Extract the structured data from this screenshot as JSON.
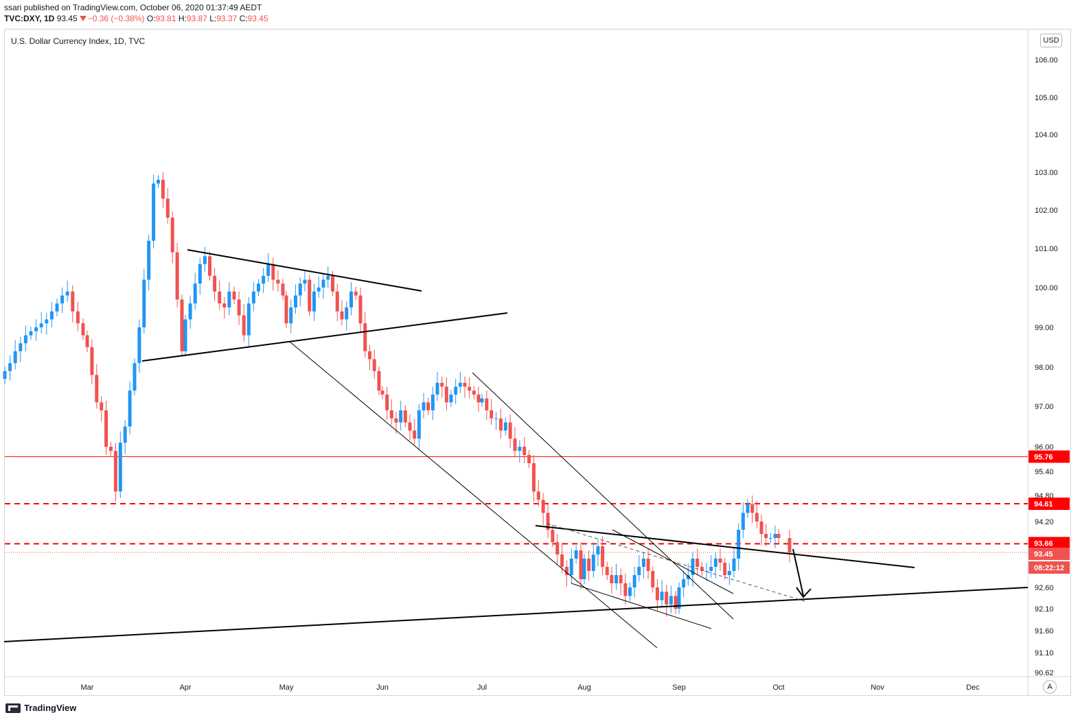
{
  "header": {
    "published": "ssari published on TradingView.com, October 06, 2020 01:37:49 AEDT",
    "symbol": "TVC:DXY, 1D",
    "last": "93.45",
    "change": "−0.36 (−0.38%)",
    "o_label": "O:",
    "o": "93.81",
    "h_label": "H:",
    "h": "93.87",
    "l_label": "L:",
    "l": "93.37",
    "c_label": "C:",
    "c": "93.45"
  },
  "chart_title": "U.S. Dollar Currency Index, 1D, TVC",
  "currency_badge": "USD",
  "scale_button": "A",
  "footer": {
    "brand": "TradingView"
  },
  "colors": {
    "up": "#2196f3",
    "down": "#ef5350",
    "level": "#ff0000",
    "trend": "#000000"
  },
  "chart_data": {
    "type": "candlestick",
    "title": "U.S. Dollar Currency Index, 1D, TVC",
    "y_axis": {
      "ticks": [
        "106.00",
        "105.00",
        "104.00",
        "103.00",
        "102.00",
        "101.00",
        "100.00",
        "99.00",
        "98.00",
        "97.00",
        "96.00",
        "95.40",
        "94.80",
        "94.20",
        "92.60",
        "92.10",
        "91.60",
        "91.10",
        "90.62"
      ],
      "min": 90.62,
      "max": 106.6
    },
    "x_axis": {
      "ticks": [
        "Mar",
        "Apr",
        "May",
        "Jun",
        "Jul",
        "Aug",
        "Sep",
        "Oct",
        "Nov",
        "Dec"
      ]
    },
    "price_labels": [
      {
        "value": "95.76",
        "style": "solid"
      },
      {
        "value": "94.61",
        "style": "dashed"
      },
      {
        "value": "93.66",
        "style": "dashed"
      },
      {
        "value": "93.45",
        "style": "last"
      },
      {
        "value": "08:22:12",
        "style": "countdown"
      }
    ],
    "horizontal_levels": [
      95.76,
      94.61,
      93.66
    ],
    "last_price": 93.45,
    "closes_by_month": {
      "Feb": [
        97.9,
        98.1,
        98.4,
        98.6,
        98.8,
        98.9,
        99.0,
        99.1,
        99.2,
        99.4,
        99.6,
        99.8,
        99.9,
        99.4,
        99.1,
        98.8
      ],
      "Mar": [
        98.5,
        97.8,
        97.1,
        96.9,
        96.0,
        95.9,
        94.9,
        96.1,
        96.5,
        97.4,
        98.1,
        99.0,
        100.2,
        101.2,
        102.7,
        102.8,
        102.3,
        101.8,
        100.9,
        99.7,
        98.4
      ],
      "Apr": [
        99.2,
        99.6,
        100.1,
        100.6,
        100.8,
        100.3,
        99.9,
        99.6,
        99.5,
        99.9,
        99.7,
        99.3,
        98.8,
        99.6,
        99.9,
        100.1,
        100.3,
        100.6,
        100.2,
        100.1,
        99.8
      ],
      "May": [
        99.1,
        99.5,
        99.8,
        100.1,
        100.2,
        99.4,
        99.9,
        100.0,
        100.2,
        100.3,
        99.9,
        99.4,
        99.2,
        99.5,
        99.9,
        99.8,
        99.1,
        98.4,
        98.2,
        97.9,
        97.4
      ],
      "Jun": [
        97.3,
        96.9,
        96.7,
        96.6,
        96.9,
        96.6,
        96.4,
        96.2,
        96.9,
        97.1,
        96.9,
        97.3,
        97.6,
        97.5,
        97.1,
        97.3,
        97.5,
        97.6,
        97.5,
        97.4,
        97.3,
        97.1
      ],
      "Jul": [
        97.2,
        96.9,
        96.7,
        96.7,
        96.4,
        96.6,
        96.2,
        95.9,
        96.0,
        95.8,
        95.6,
        94.9,
        94.7,
        94.4,
        94.0,
        93.7,
        93.4,
        93.1,
        92.9,
        93.3,
        93.5,
        92.8
      ],
      "Aug": [
        93.3,
        93.0,
        93.4,
        93.6,
        93.1,
        92.9,
        92.7,
        92.9,
        92.7,
        92.4,
        92.6,
        92.9,
        93.1,
        93.3,
        93.0,
        92.6,
        92.3,
        92.5,
        92.2,
        92.4,
        92.1
      ],
      "Sep": [
        92.6,
        92.8,
        92.9,
        93.3,
        93.1,
        93.0,
        93.0,
        93.1,
        93.3,
        93.2,
        92.9,
        93.0,
        93.3,
        94.0,
        94.4,
        94.6,
        94.4,
        94.2,
        93.9,
        93.8,
        93.8,
        93.9
      ],
      "Oct": [
        93.8,
        93.45
      ]
    }
  }
}
